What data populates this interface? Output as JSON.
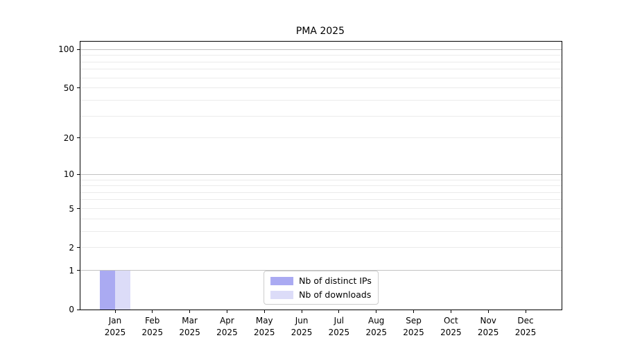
{
  "chart_data": {
    "type": "bar",
    "title": "PMA 2025",
    "categories": [
      "Jan 2025",
      "Feb 2025",
      "Mar 2025",
      "Apr 2025",
      "May 2025",
      "Jun 2025",
      "Jul 2025",
      "Aug 2025",
      "Sep 2025",
      "Oct 2025",
      "Nov 2025",
      "Dec 2025"
    ],
    "series": [
      {
        "name": "Nb of distinct IPs",
        "color": "#aaaaf2",
        "values": [
          1,
          0,
          0,
          0,
          0,
          0,
          0,
          0,
          0,
          0,
          0,
          0
        ]
      },
      {
        "name": "Nb of downloads",
        "color": "#dcdcf8",
        "values": [
          1,
          0,
          0,
          0,
          0,
          0,
          0,
          0,
          0,
          0,
          0,
          0
        ]
      }
    ],
    "y_axis": {
      "scale": "log10(value+1)",
      "ylim": [
        0,
        115
      ],
      "major_ticks": [
        0,
        1,
        2,
        5,
        10,
        20,
        50,
        100
      ],
      "major_gridlines": [
        1,
        10,
        100
      ],
      "minor_gridlines": [
        2,
        3,
        4,
        5,
        6,
        7,
        8,
        9,
        20,
        30,
        40,
        50,
        60,
        70,
        80,
        90
      ]
    },
    "xlabel": "",
    "ylabel": "",
    "grid": "horizontal",
    "legend_position": "lower center"
  },
  "colors": {
    "background": "#ffffff",
    "axis": "#000000",
    "major_grid": "#c2c2c2",
    "minor_grid": "#ebebeb",
    "legend_border": "#cccccc",
    "text": "#000000"
  }
}
